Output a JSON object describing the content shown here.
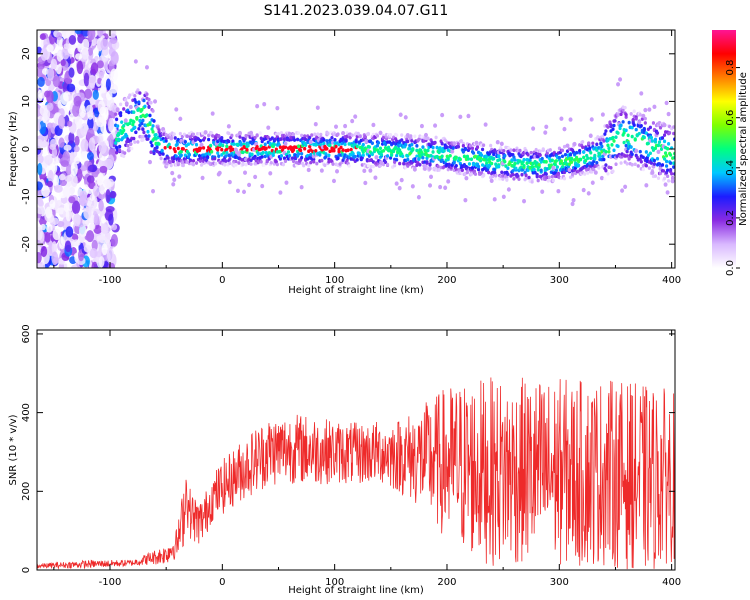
{
  "title": "S141.2023.039.04.07.G11",
  "colors": {
    "snr_line": "#ee2a2a",
    "axis": "#000000",
    "background": "#ffffff"
  },
  "chart_data": [
    {
      "type": "heatmap",
      "xlabel": "Height of straight line (km)",
      "ylabel": "Frequency (Hz)",
      "xlim": [
        -165,
        403
      ],
      "ylim": [
        -25,
        25
      ],
      "x_ticks": [
        -100,
        0,
        100,
        200,
        300,
        400
      ],
      "y_ticks": [
        -20,
        -10,
        0,
        10,
        20
      ],
      "grid": false,
      "colorbar": {
        "label": "Normalized spectral amplitude",
        "range": [
          0.0,
          0.95
        ],
        "ticks": [
          "0.0",
          "0.2",
          "0.4",
          "0.6",
          "0.8"
        ],
        "colormap": [
          "#ffffff",
          "#d9b8ff",
          "#8a2be2",
          "#1c1cff",
          "#00c8ff",
          "#00ff7f",
          "#7fff00",
          "#ffff00",
          "#ff7f00",
          "#ff0000",
          "#ff1493"
        ]
      },
      "ridge": {
        "x": [
          -165,
          -120,
          -100,
          -90,
          -80,
          -70,
          -60,
          -50,
          -40,
          0,
          50,
          100,
          130,
          160,
          190,
          220,
          250,
          280,
          300,
          320,
          340,
          355,
          370,
          385,
          400
        ],
        "y": [
          0,
          0,
          2,
          4,
          6,
          8,
          2,
          0,
          0,
          0,
          0,
          0,
          -0.2,
          -0.5,
          -1,
          -2,
          -3,
          -3.5,
          -3,
          -2,
          -0.5,
          3,
          2,
          0,
          -1
        ]
      }
    },
    {
      "type": "line",
      "xlabel": "Height of straight line (km)",
      "ylabel": "SNR (10 * v/v)",
      "xlim": [
        -165,
        403
      ],
      "ylim": [
        0,
        610
      ],
      "x_ticks": [
        -100,
        0,
        100,
        200,
        300,
        400
      ],
      "y_ticks": [
        0,
        200,
        400,
        600
      ],
      "grid": false,
      "series": [
        {
          "x": [
            -165,
            -120,
            -80,
            -50,
            -40,
            -35,
            -32,
            -30,
            -25,
            -20,
            -15,
            -10,
            0,
            20,
            40,
            60,
            80,
            100,
            120,
            140,
            160,
            180,
            200,
            220,
            240,
            260,
            280,
            300,
            320,
            340,
            360,
            380,
            400
          ],
          "mean": [
            10,
            15,
            18,
            40,
            70,
            130,
            210,
            150,
            130,
            120,
            140,
            180,
            210,
            260,
            300,
            310,
            305,
            300,
            295,
            300,
            290,
            285,
            270,
            260,
            250,
            250,
            250,
            250,
            245,
            250,
            240,
            230,
            240
          ],
          "spread": [
            6,
            10,
            8,
            25,
            40,
            80,
            60,
            70,
            60,
            60,
            60,
            60,
            70,
            80,
            90,
            90,
            90,
            80,
            80,
            80,
            100,
            140,
            200,
            230,
            240,
            240,
            240,
            240,
            240,
            240,
            240,
            240,
            220
          ]
        }
      ]
    }
  ]
}
